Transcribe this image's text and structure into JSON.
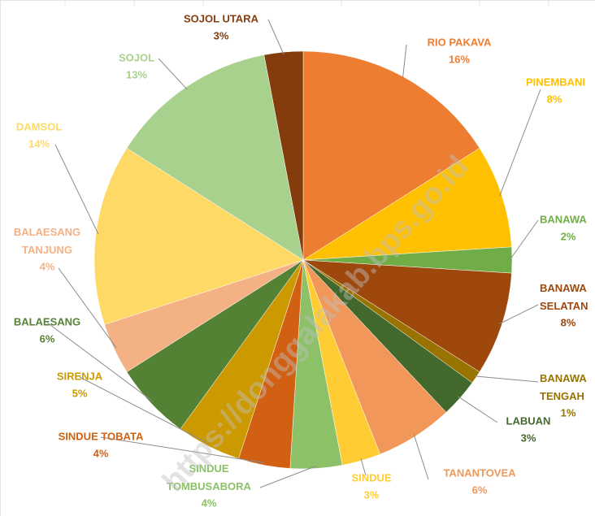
{
  "chart_data": {
    "type": "pie",
    "categories": [
      "RIO PAKAVA",
      "PINEMBANI",
      "BANAWA",
      "BANAWA SELATAN",
      "BANAWA TENGAH",
      "LABUAN",
      "TANANTOVEA",
      "SINDUE",
      "SINDUE TOMBUSABORA",
      "SINDUE TOBATA",
      "SIRENJA",
      "BALAESANG",
      "BALAESANG TANJUNG",
      "DAMSOL",
      "SOJOL",
      "SOJOL UTARA"
    ],
    "values": [
      16,
      8,
      2,
      8,
      1,
      3,
      6,
      3,
      4,
      4,
      5,
      6,
      4,
      14,
      13,
      3
    ],
    "value_labels": [
      "16%",
      "8%",
      "2%",
      "8%",
      "1%",
      "3%",
      "6%",
      "3%",
      "4%",
      "4%",
      "5%",
      "6%",
      "4%",
      "14%",
      "13%",
      "3%"
    ],
    "colors": [
      "#ED7D31",
      "#FFC000",
      "#70AD47",
      "#9E480E",
      "#997300",
      "#43682B",
      "#F1975A",
      "#FFCD33",
      "#8CC168",
      "#D26012",
      "#CC9A00",
      "#548235",
      "#F4B183",
      "#FFD966",
      "#A9D18E",
      "#843C0C"
    ],
    "watermark": "https://donggalakab.bps.go.id"
  }
}
